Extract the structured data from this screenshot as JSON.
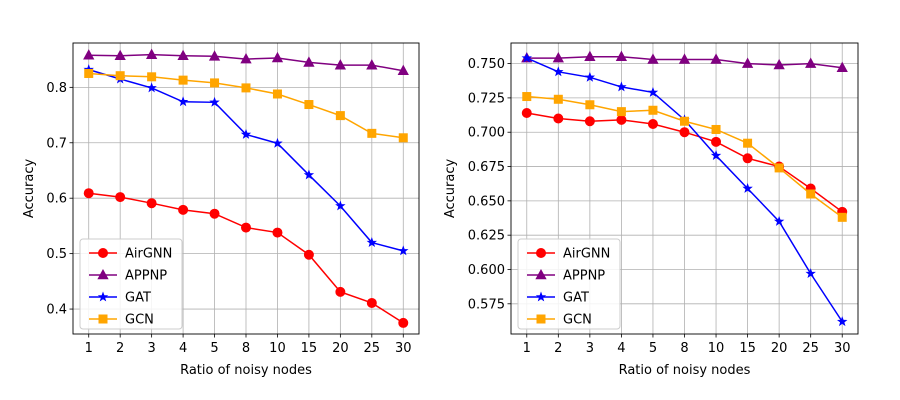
{
  "chart_data": [
    {
      "type": "line",
      "title": "",
      "xlabel": "Ratio of noisy nodes",
      "ylabel": "Accuracy",
      "categories": [
        "1",
        "2",
        "3",
        "4",
        "5",
        "8",
        "10",
        "15",
        "20",
        "25",
        "30"
      ],
      "ylim": [
        0.355,
        0.88
      ],
      "yticks": [
        "0.4",
        "0.5",
        "0.6",
        "0.7",
        "0.8"
      ],
      "grid": true,
      "legend": "lower-left",
      "series": [
        {
          "name": "AirGNN",
          "color": "#ff0000",
          "marker": "circle",
          "values": [
            0.609,
            0.602,
            0.591,
            0.579,
            0.572,
            0.547,
            0.538,
            0.498,
            0.431,
            0.411,
            0.375
          ]
        },
        {
          "name": "APPNP",
          "color": "#800080",
          "marker": "triangle",
          "values": [
            0.858,
            0.857,
            0.859,
            0.857,
            0.856,
            0.851,
            0.853,
            0.845,
            0.84,
            0.84,
            0.83
          ]
        },
        {
          "name": "GAT",
          "color": "#0000ff",
          "marker": "star",
          "values": [
            0.832,
            0.815,
            0.799,
            0.774,
            0.773,
            0.715,
            0.699,
            0.642,
            0.586,
            0.52,
            0.505
          ]
        },
        {
          "name": "GCN",
          "color": "#ffa500",
          "marker": "square",
          "values": [
            0.825,
            0.821,
            0.819,
            0.813,
            0.808,
            0.799,
            0.788,
            0.769,
            0.749,
            0.717,
            0.709
          ]
        }
      ]
    },
    {
      "type": "line",
      "title": "",
      "xlabel": "Ratio of noisy nodes",
      "ylabel": "Accuracy",
      "categories": [
        "1",
        "2",
        "3",
        "4",
        "5",
        "8",
        "10",
        "15",
        "20",
        "25",
        "30"
      ],
      "ylim": [
        0.553,
        0.765
      ],
      "yticks": [
        "0.575",
        "0.600",
        "0.625",
        "0.650",
        "0.675",
        "0.700",
        "0.725",
        "0.750"
      ],
      "grid": true,
      "legend": "lower-left",
      "series": [
        {
          "name": "AirGNN",
          "color": "#ff0000",
          "marker": "circle",
          "values": [
            0.714,
            0.71,
            0.708,
            0.709,
            0.706,
            0.7,
            0.693,
            0.681,
            0.675,
            0.659,
            0.642
          ]
        },
        {
          "name": "APPNP",
          "color": "#800080",
          "marker": "triangle",
          "values": [
            0.754,
            0.754,
            0.755,
            0.755,
            0.753,
            0.753,
            0.753,
            0.75,
            0.749,
            0.75,
            0.747
          ]
        },
        {
          "name": "GAT",
          "color": "#0000ff",
          "marker": "star",
          "values": [
            0.754,
            0.744,
            0.74,
            0.733,
            0.729,
            0.709,
            0.683,
            0.659,
            0.635,
            0.597,
            0.562
          ]
        },
        {
          "name": "GCN",
          "color": "#ffa500",
          "marker": "square",
          "values": [
            0.726,
            0.724,
            0.72,
            0.715,
            0.716,
            0.708,
            0.702,
            0.692,
            0.674,
            0.655,
            0.638
          ]
        }
      ]
    }
  ]
}
